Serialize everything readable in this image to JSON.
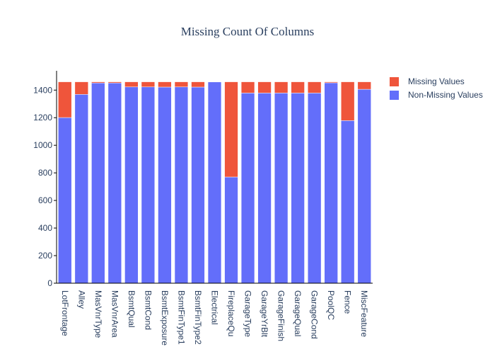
{
  "chart_data": {
    "type": "bar",
    "barmode": "stack",
    "title": "Missing Count Of Columns",
    "xlabel": "",
    "ylabel": "",
    "ylim": [
      0,
      1540
    ],
    "yticks": [
      0,
      200,
      400,
      600,
      800,
      1000,
      1200,
      1400
    ],
    "grid": false,
    "legend_position": "top-right",
    "categories": [
      "LotFrontage",
      "Alley",
      "MasVnrType",
      "MasVnrArea",
      "BsmtQual",
      "BsmtCond",
      "BsmtExposure",
      "BsmtFinType1",
      "BsmtFinType2",
      "Electrical",
      "FireplaceQu",
      "GarageType",
      "GarageYrBlt",
      "GarageFinish",
      "GarageQual",
      "GarageCond",
      "PoolQC",
      "Fence",
      "MiscFeature"
    ],
    "series": [
      {
        "name": "Non-Missing Values",
        "color": "#636efa",
        "values": [
          1201,
          1369,
          1452,
          1452,
          1423,
          1423,
          1422,
          1423,
          1422,
          1459,
          770,
          1379,
          1379,
          1379,
          1379,
          1379,
          1453,
          1179,
          1406
        ]
      },
      {
        "name": "Missing Values",
        "color": "#ef553b",
        "values": [
          259,
          91,
          8,
          8,
          37,
          37,
          38,
          37,
          38,
          1,
          690,
          81,
          81,
          81,
          81,
          81,
          7,
          281,
          54
        ]
      }
    ]
  }
}
